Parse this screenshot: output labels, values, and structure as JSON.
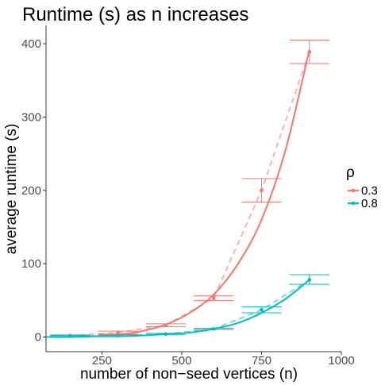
{
  "chart_data": {
    "type": "line",
    "title": "Runtime (s) as n increases",
    "xlabel": "number of non−seed vertices (n)",
    "ylabel": "average runtime (s)",
    "xlim": [
      75,
      1000
    ],
    "ylim": [
      -20,
      425
    ],
    "x_ticks": [
      250,
      500,
      750,
      1000
    ],
    "y_ticks": [
      0,
      100,
      200,
      300,
      400
    ],
    "grid": false,
    "legend": {
      "title": "ρ",
      "position": "right"
    },
    "x": [
      150,
      300,
      450,
      600,
      750,
      900
    ],
    "series": [
      {
        "name": "0.3",
        "color": "#F8766D",
        "mean": [
          2,
          6,
          16,
          53,
          200,
          389
        ],
        "lower": [
          1,
          4,
          14,
          50,
          184,
          373
        ],
        "upper": [
          3,
          8,
          18,
          56,
          216,
          405
        ],
        "fit_x": [
          75,
          150,
          225,
          300,
          375,
          450,
          525,
          600,
          675,
          750,
          825,
          900
        ],
        "fit_y": [
          0,
          0,
          1,
          3,
          8,
          17,
          33,
          58,
          99,
          160,
          255,
          392
        ]
      },
      {
        "name": "0.8",
        "color": "#00BFC4",
        "mean": [
          1,
          2,
          4,
          11,
          37,
          78
        ],
        "lower": [
          0,
          1,
          3,
          10,
          33,
          72
        ],
        "upper": [
          2,
          3,
          5,
          12,
          41,
          85
        ],
        "fit_x": [
          75,
          150,
          225,
          300,
          375,
          450,
          525,
          600,
          675,
          750,
          825,
          900
        ],
        "fit_y": [
          0,
          0,
          1,
          1,
          2,
          4,
          6,
          11,
          19,
          33,
          52,
          78
        ]
      }
    ]
  }
}
